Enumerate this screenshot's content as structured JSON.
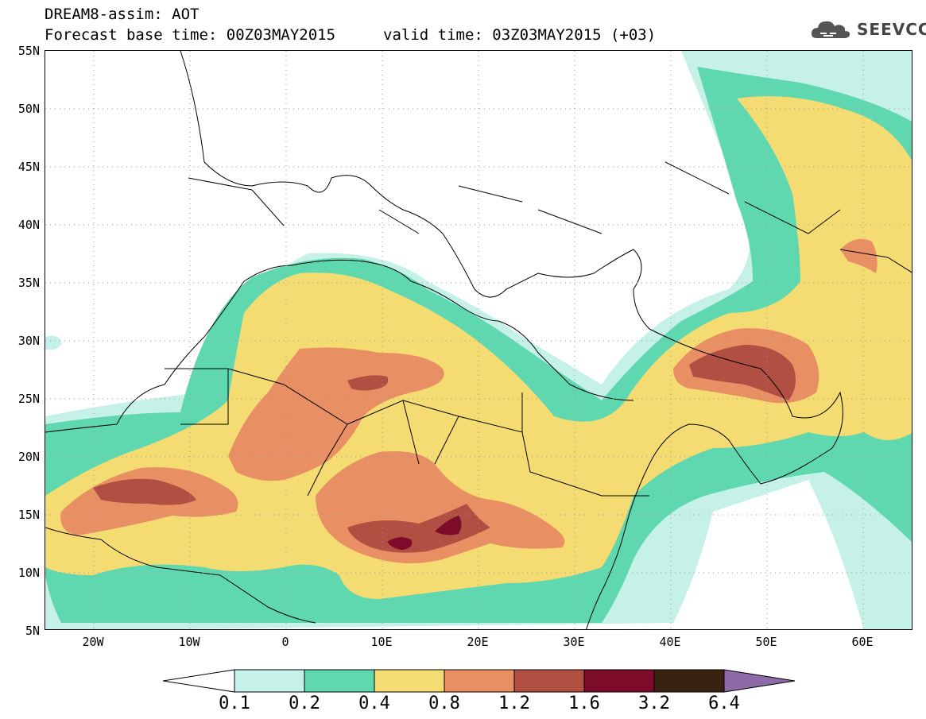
{
  "header": {
    "title": "DREAM8-assim: AOT",
    "base_time": "Forecast base time: 00Z03MAY2015",
    "valid_time": "valid time: 03Z03MAY2015 (+03)"
  },
  "logo": {
    "text": "SEEVCCC",
    "icon": "cloud-icon"
  },
  "map": {
    "region": {
      "lon_min": -25,
      "lon_max": 65,
      "lat_min": 5,
      "lat_max": 55
    },
    "lat_labels": [
      "55N",
      "50N",
      "45N",
      "40N",
      "35N",
      "30N",
      "25N",
      "20N",
      "15N",
      "10N",
      "5N"
    ],
    "lon_labels": [
      "20W",
      "10W",
      "0",
      "10E",
      "20E",
      "30E",
      "40E",
      "50E",
      "60E"
    ],
    "variable": "AOT"
  },
  "colorbar": {
    "levels": [
      "0.1",
      "0.2",
      "0.4",
      "0.8",
      "1.2",
      "1.6",
      "3.2",
      "6.4"
    ],
    "colors": {
      "under": "#ffffff",
      "c1": "#c6f1e9",
      "c2": "#5fd8b0",
      "c3": "#f5dc72",
      "c4": "#e88f64",
      "c5": "#b24f43",
      "c6": "#7d0b2a",
      "c7": "#3a2212",
      "over": "#8e6aa9"
    }
  }
}
